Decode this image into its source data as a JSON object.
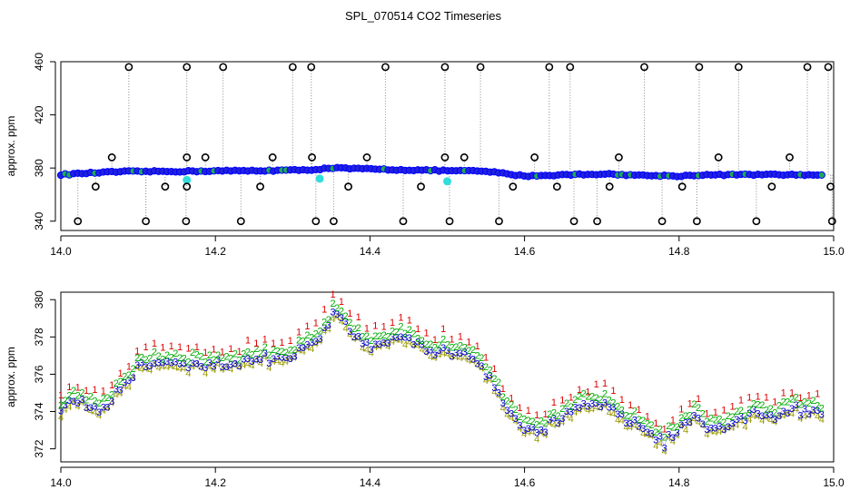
{
  "title": "SPL_070514  CO2 Timeseries",
  "colors": {
    "axis": "#000000",
    "circle_fill": "#2222dd",
    "circle_edge": "#0000ff",
    "flag_open": "#000000",
    "cyan": "#33dddd",
    "dotted": "#888888",
    "label1": "#dd0000",
    "label2": "#00aa00",
    "label3": "#0000cc",
    "label4": "#999900"
  },
  "chart_data": [
    {
      "type": "scatter",
      "panel": "top",
      "ylabel": "approx. ppm",
      "xlabel": "",
      "xlim": [
        14.0,
        15.0
      ],
      "ylim": [
        333,
        460
      ],
      "xticks": [
        14.0,
        14.2,
        14.4,
        14.6,
        14.8,
        15.0
      ],
      "xtick_labels": [
        "14.0",
        "14.2",
        "14.4",
        "14.6",
        "14.8",
        "15.0"
      ],
      "yticks": [
        340,
        380,
        420,
        460
      ],
      "ytick_labels": [
        "340",
        "380",
        "420",
        "460"
      ],
      "baseline_anchors": [
        [
          14.0,
          375.0
        ],
        [
          14.03,
          376.0
        ],
        [
          14.08,
          377.3
        ],
        [
          14.16,
          377.5
        ],
        [
          14.2,
          377.8
        ],
        [
          14.26,
          378.0
        ],
        [
          14.32,
          378.5
        ],
        [
          14.35,
          380.0
        ],
        [
          14.38,
          379.5
        ],
        [
          14.45,
          378.5
        ],
        [
          14.5,
          378.0
        ],
        [
          14.55,
          377.5
        ],
        [
          14.6,
          374.0
        ],
        [
          14.66,
          375.0
        ],
        [
          14.7,
          375.5
        ],
        [
          14.75,
          374.5
        ],
        [
          14.8,
          374.0
        ],
        [
          14.83,
          374.8
        ],
        [
          14.9,
          375.0
        ],
        [
          14.98,
          374.8
        ]
      ],
      "flag_high": [
        14.088,
        14.163,
        14.21,
        14.3,
        14.324,
        14.42,
        14.497,
        14.543,
        14.632,
        14.659,
        14.755,
        14.826,
        14.877,
        14.966,
        14.993
      ],
      "flag_low": [
        14.022,
        14.11,
        14.162,
        14.233,
        14.33,
        14.353,
        14.443,
        14.503,
        14.567,
        14.664,
        14.694,
        14.778,
        14.823,
        14.9,
        14.998
      ],
      "flag_mid_high": [
        14.066,
        14.163,
        14.187,
        14.274,
        14.325,
        14.396,
        14.497,
        14.522,
        14.613,
        14.722,
        14.851,
        14.943
      ],
      "flag_mid_low": [
        14.045,
        14.135,
        14.163,
        14.258,
        14.372,
        14.466,
        14.585,
        14.642,
        14.71,
        14.804,
        14.92,
        14.996
      ],
      "cyan_points": [
        [
          14.163,
          371
        ],
        [
          14.5,
          370
        ],
        [
          14.335,
          372
        ]
      ]
    },
    {
      "type": "scatter",
      "panel": "bottom",
      "ylabel": "approx. ppm",
      "xlabel": "",
      "xlim": [
        14.0,
        15.0
      ],
      "ylim": [
        371.3,
        380.4
      ],
      "xticks": [
        14.0,
        14.2,
        14.4,
        14.6,
        14.8,
        15.0
      ],
      "xtick_labels": [
        "14.0",
        "14.2",
        "14.4",
        "14.6",
        "14.8",
        "15.0"
      ],
      "yticks": [
        372,
        374,
        376,
        378,
        380
      ],
      "ytick_labels": [
        "372",
        "374",
        "376",
        "378",
        "380"
      ],
      "series": [
        {
          "name": "1",
          "offset": 0.9
        },
        {
          "name": "2",
          "offset": 0.4
        },
        {
          "name": "3",
          "offset": 0.0
        },
        {
          "name": "4",
          "offset": -0.2
        }
      ],
      "anchors": [
        [
          14.0,
          373.8
        ],
        [
          14.01,
          374.7
        ],
        [
          14.03,
          374.5
        ],
        [
          14.05,
          373.8
        ],
        [
          14.07,
          375.0
        ],
        [
          14.1,
          376.3
        ],
        [
          14.12,
          376.7
        ],
        [
          14.16,
          376.6
        ],
        [
          14.2,
          376.5
        ],
        [
          14.25,
          376.8
        ],
        [
          14.3,
          377.0
        ],
        [
          14.33,
          377.7
        ],
        [
          14.355,
          379.3
        ],
        [
          14.38,
          378.0
        ],
        [
          14.4,
          377.5
        ],
        [
          14.45,
          378.0
        ],
        [
          14.48,
          377.3
        ],
        [
          14.52,
          377.2
        ],
        [
          14.54,
          376.8
        ],
        [
          14.57,
          374.7
        ],
        [
          14.59,
          373.6
        ],
        [
          14.6,
          373.3
        ],
        [
          14.62,
          373.0
        ],
        [
          14.64,
          373.6
        ],
        [
          14.66,
          374.0
        ],
        [
          14.68,
          374.3
        ],
        [
          14.7,
          374.5
        ],
        [
          14.72,
          373.8
        ],
        [
          14.76,
          373.0
        ],
        [
          14.78,
          372.3
        ],
        [
          14.8,
          373.0
        ],
        [
          14.82,
          374.0
        ],
        [
          14.84,
          373.0
        ],
        [
          14.88,
          373.5
        ],
        [
          14.9,
          374.0
        ],
        [
          14.93,
          373.8
        ],
        [
          14.95,
          374.1
        ],
        [
          14.98,
          374.0
        ]
      ]
    }
  ]
}
